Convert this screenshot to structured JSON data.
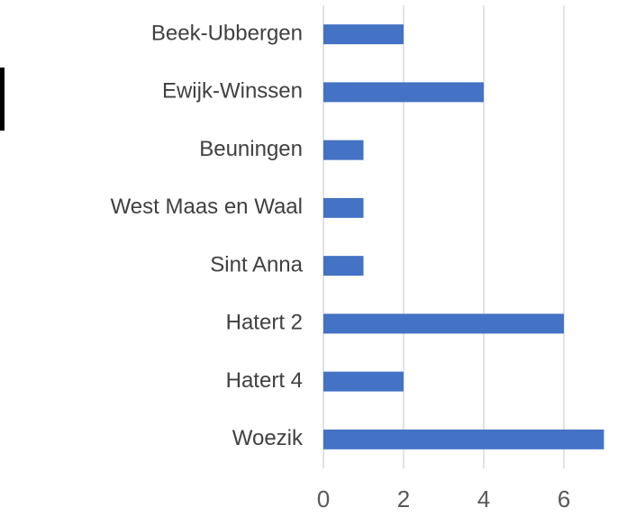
{
  "chart_data": {
    "type": "barh",
    "categories": [
      "Beek-Ubbergen",
      "Ewijk-Winssen",
      "Beuningen",
      "West Maas en Waal",
      "Sint Anna",
      "Hatert 2",
      "Hatert 4",
      "Woezik"
    ],
    "values": [
      2,
      4,
      1,
      1,
      1,
      6,
      2,
      7
    ],
    "color": "#4472c4",
    "xlim": [
      0,
      7.8
    ],
    "xticks": [
      0,
      2,
      4,
      6
    ],
    "grid": true
  }
}
